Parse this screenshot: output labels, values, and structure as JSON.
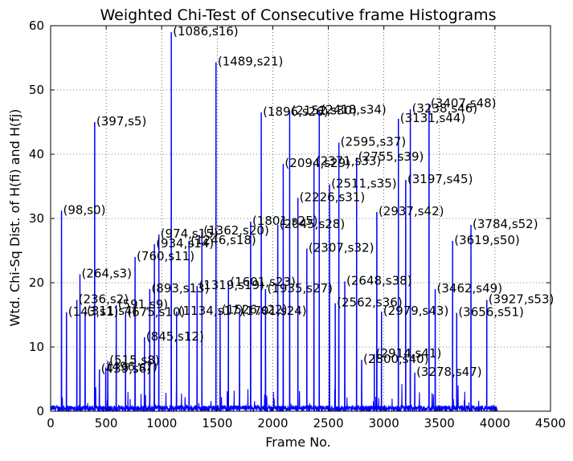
{
  "chart_data": {
    "type": "line",
    "title": "Weighted Chi-Test of Consecutive frame Histograms",
    "xlabel": "Frame No.",
    "ylabel": "Wtd. Chi-Sq Dist. of H(fi) and H(fj)",
    "xlim": [
      0,
      4500
    ],
    "ylim": [
      0,
      60
    ],
    "xticks": [
      0,
      500,
      1000,
      1500,
      2000,
      2500,
      3000,
      3500,
      4000,
      4500
    ],
    "yticks": [
      0,
      10,
      20,
      30,
      40,
      50,
      60
    ],
    "grid": true,
    "line_color": "#0000ff",
    "data_end": 4020,
    "peaks": [
      {
        "x": 98,
        "y": 31.2,
        "label": "(98,s0)"
      },
      {
        "x": 143,
        "y": 15.4,
        "label": "(143,s1)"
      },
      {
        "x": 236,
        "y": 17.3,
        "label": "(236,s2)"
      },
      {
        "x": 264,
        "y": 21.3,
        "label": "(264,s3)"
      },
      {
        "x": 311,
        "y": 15.5,
        "label": "(311,s4)"
      },
      {
        "x": 397,
        "y": 45.0,
        "label": "(397,s5)"
      },
      {
        "x": 439,
        "y": 6.5,
        "label": "(439,s6)"
      },
      {
        "x": 496,
        "y": 6.8,
        "label": "(496,s7)"
      },
      {
        "x": 515,
        "y": 7.8,
        "label": "(515,s8)"
      },
      {
        "x": 591,
        "y": 16.5,
        "label": "(591,s9)"
      },
      {
        "x": 675,
        "y": 15.3,
        "label": "(675,s10)"
      },
      {
        "x": 760,
        "y": 24.0,
        "label": "(760,s11)"
      },
      {
        "x": 845,
        "y": 11.5,
        "label": "(845,s12)"
      },
      {
        "x": 893,
        "y": 19.0,
        "label": "(893,s13)"
      },
      {
        "x": 934,
        "y": 26.0,
        "label": "(934,s14)"
      },
      {
        "x": 974,
        "y": 27.5,
        "label": "(974,s15)"
      },
      {
        "x": 1086,
        "y": 59.0,
        "label": "(1086,s16)"
      },
      {
        "x": 1134,
        "y": 15.5,
        "label": "(1134,s17)"
      },
      {
        "x": 1246,
        "y": 26.5,
        "label": "(1246,s18)"
      },
      {
        "x": 1319,
        "y": 19.5,
        "label": "(1319,s19)"
      },
      {
        "x": 1362,
        "y": 28.0,
        "label": "(1362,s20)"
      },
      {
        "x": 1489,
        "y": 54.3,
        "label": "(1489,s21)"
      },
      {
        "x": 1526,
        "y": 15.7,
        "label": "(1526,s22)"
      },
      {
        "x": 1601,
        "y": 20.0,
        "label": "(1601,s23)"
      },
      {
        "x": 1701,
        "y": 15.5,
        "label": "(1701,s24)"
      },
      {
        "x": 1801,
        "y": 29.5,
        "label": "(1801,s25)"
      },
      {
        "x": 1896,
        "y": 46.5,
        "label": "(1896,s26)"
      },
      {
        "x": 1935,
        "y": 19.0,
        "label": "(1935,s27)"
      },
      {
        "x": 2045,
        "y": 29.0,
        "label": "(2045,s28)"
      },
      {
        "x": 2094,
        "y": 38.5,
        "label": "(2094,s29)"
      },
      {
        "x": 2152,
        "y": 46.7,
        "label": "(2152,s30)"
      },
      {
        "x": 2226,
        "y": 33.2,
        "label": "(2226,s31)"
      },
      {
        "x": 2307,
        "y": 25.3,
        "label": "(2307,s32)"
      },
      {
        "x": 2371,
        "y": 38.8,
        "label": "(2371,s33)"
      },
      {
        "x": 2418,
        "y": 46.8,
        "label": "(2418,s34)"
      },
      {
        "x": 2511,
        "y": 35.3,
        "label": "(2511,s35)"
      },
      {
        "x": 2562,
        "y": 16.8,
        "label": "(2562,s36)"
      },
      {
        "x": 2595,
        "y": 41.8,
        "label": "(2595,s37)"
      },
      {
        "x": 2648,
        "y": 20.2,
        "label": "(2648,s38)"
      },
      {
        "x": 2755,
        "y": 39.5,
        "label": "(2755,s39)"
      },
      {
        "x": 2800,
        "y": 8.0,
        "label": "(2800,s40)"
      },
      {
        "x": 2914,
        "y": 8.9,
        "label": "(2914,s41)"
      },
      {
        "x": 2937,
        "y": 31.0,
        "label": "(2937,s42)"
      },
      {
        "x": 2979,
        "y": 15.5,
        "label": "(2979,s43)"
      },
      {
        "x": 3131,
        "y": 45.5,
        "label": "(3131,s44)"
      },
      {
        "x": 3197,
        "y": 36.0,
        "label": "(3197,s45)"
      },
      {
        "x": 3238,
        "y": 47.0,
        "label": "(3238,s46)"
      },
      {
        "x": 3278,
        "y": 6.0,
        "label": "(3278,s47)"
      },
      {
        "x": 3407,
        "y": 47.8,
        "label": "(3407,s48)"
      },
      {
        "x": 3462,
        "y": 19.0,
        "label": "(3462,s49)"
      },
      {
        "x": 3619,
        "y": 26.5,
        "label": "(3619,s50)"
      },
      {
        "x": 3656,
        "y": 15.3,
        "label": "(3656,s51)"
      },
      {
        "x": 3784,
        "y": 29.0,
        "label": "(3784,s52)"
      },
      {
        "x": 3927,
        "y": 17.3,
        "label": "(3927,s53)"
      }
    ]
  }
}
